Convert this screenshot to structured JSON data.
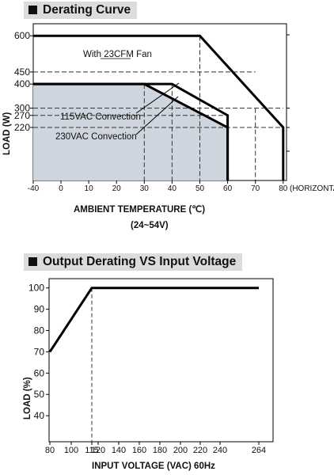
{
  "sections": [
    {
      "title": "Derating Curve"
    },
    {
      "title": "Output Derating VS Input Voltage"
    }
  ],
  "chart_data": [
    {
      "type": "line",
      "title": "Derating Curve",
      "xlabel": "AMBIENT TEMPERATURE (℃)",
      "xlabel_extra": "(24~54V)",
      "ylabel": "LOAD (W)",
      "x_unit_label": "(HORIZONTAL)",
      "xlim": [
        -40,
        80
      ],
      "ylim": [
        0,
        650
      ],
      "x_ticks": [
        -40,
        0,
        10,
        20,
        30,
        40,
        50,
        60,
        70,
        80
      ],
      "x_tick_labels": [
        "-40",
        "0",
        "10",
        "20",
        "30",
        "40",
        "50",
        "60",
        "70",
        "80"
      ],
      "y_ticks": [
        600,
        450,
        400,
        300,
        270,
        220
      ],
      "y_tick_labels": [
        "600",
        "450",
        "400",
        "300",
        "270",
        "220"
      ],
      "grid": false,
      "series": [
        {
          "name": "With 23CFM Fan",
          "x": [
            -40,
            50,
            80,
            80
          ],
          "y": [
            600,
            600,
            220,
            0
          ]
        },
        {
          "name": "115VAC Convection",
          "x": [
            -40,
            40,
            60,
            60
          ],
          "y": [
            400,
            400,
            270,
            0
          ]
        },
        {
          "name": "230VAC Convection",
          "x": [
            -40,
            30,
            60,
            60
          ],
          "y": [
            400,
            400,
            220,
            0
          ]
        }
      ],
      "annotations": [
        "With 23CFM Fan",
        "115VAC Convection",
        "230VAC Convection"
      ],
      "colors": {
        "line": "#000000",
        "shade": "#cfd5de",
        "dash": "#333333"
      }
    },
    {
      "type": "line",
      "title": "Output Derating VS Input Voltage",
      "xlabel": "INPUT VOLTAGE (VAC) 60Hz",
      "ylabel": "LOAD (%)",
      "xlim": [
        80,
        264
      ],
      "ylim": [
        30,
        105
      ],
      "x_ticks": [
        80,
        100,
        115,
        120,
        140,
        160,
        180,
        200,
        220,
        240,
        264
      ],
      "x_tick_labels": [
        "80",
        "100",
        "115",
        "120",
        "140",
        "160",
        "180",
        "200",
        "220",
        "240",
        "264"
      ],
      "y_ticks": [
        100,
        90,
        80,
        70,
        60,
        50,
        40
      ],
      "y_tick_labels": [
        "100",
        "90",
        "80",
        "70",
        "60",
        "50",
        "40"
      ],
      "grid": false,
      "series": [
        {
          "x": [
            80,
            115,
            264
          ],
          "y": [
            70,
            100,
            100
          ]
        }
      ],
      "colors": {
        "line": "#000000",
        "dash": "#333333"
      }
    }
  ]
}
